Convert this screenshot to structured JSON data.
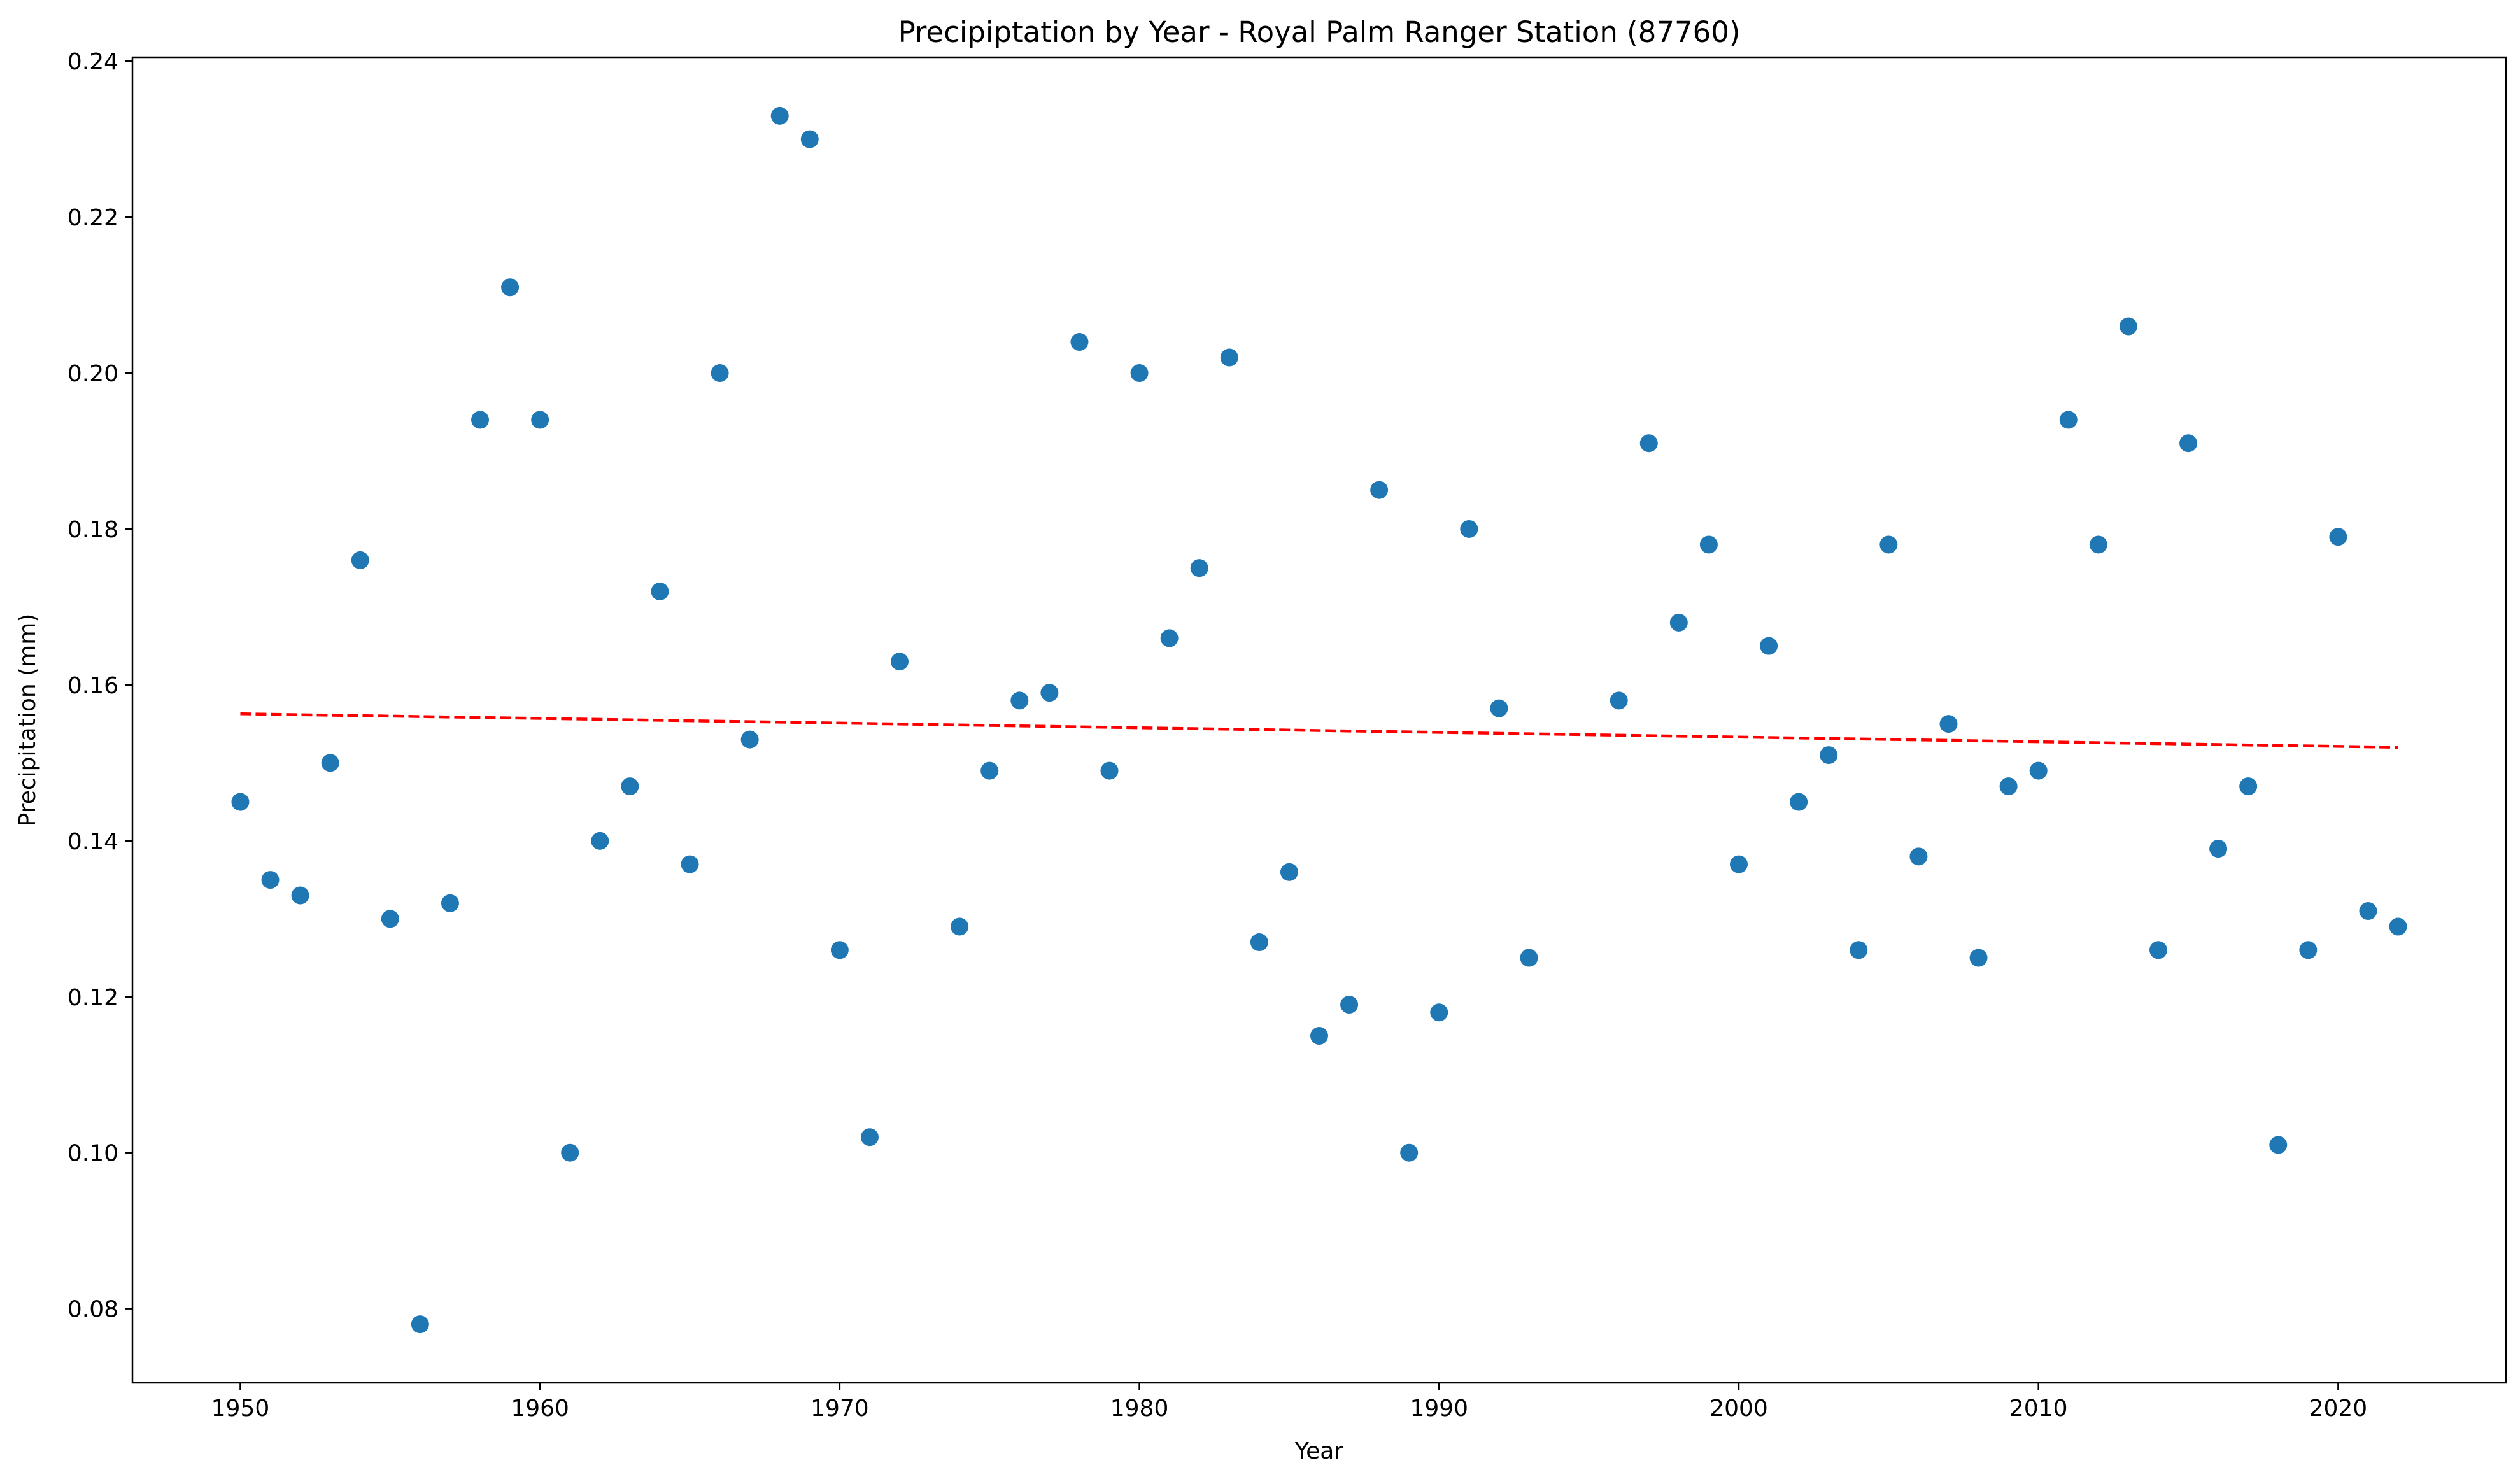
{
  "chart_data": {
    "type": "scatter",
    "title": "Precipiptation by Year - Royal Palm Ranger Station (87760)",
    "xlabel": "Year",
    "ylabel": "Precipitation (mm)",
    "xlim": [
      1946.4,
      2025.6
    ],
    "ylim": [
      0.0705,
      0.2405
    ],
    "xticks": [
      1950,
      1960,
      1970,
      1980,
      1990,
      2000,
      2010,
      2020
    ],
    "yticks": [
      0.08,
      0.1,
      0.12,
      0.14,
      0.16,
      0.18,
      0.2,
      0.22,
      0.24
    ],
    "ytick_labels": [
      "0.08",
      "0.10",
      "0.12",
      "0.14",
      "0.16",
      "0.18",
      "0.20",
      "0.22",
      "0.24"
    ],
    "grid": false,
    "series": [
      {
        "kind": "points",
        "color": "#1f77b4",
        "x": [
          1950,
          1951,
          1952,
          1953,
          1954,
          1955,
          1956,
          1957,
          1958,
          1959,
          1960,
          1961,
          1962,
          1963,
          1964,
          1965,
          1966,
          1967,
          1968,
          1969,
          1970,
          1971,
          1972,
          1974,
          1975,
          1976,
          1977,
          1978,
          1979,
          1980,
          1981,
          1982,
          1983,
          1984,
          1985,
          1986,
          1987,
          1988,
          1989,
          1990,
          1991,
          1992,
          1993,
          1996,
          1997,
          1998,
          1999,
          2000,
          2001,
          2002,
          2003,
          2004,
          2005,
          2006,
          2007,
          2008,
          2009,
          2010,
          2011,
          2012,
          2013,
          2014,
          2015,
          2016,
          2017,
          2018,
          2019,
          2020,
          2021,
          2022
        ],
        "y": [
          0.145,
          0.135,
          0.133,
          0.15,
          0.176,
          0.13,
          0.078,
          0.132,
          0.194,
          0.211,
          0.194,
          0.1,
          0.14,
          0.147,
          0.172,
          0.137,
          0.2,
          0.153,
          0.233,
          0.23,
          0.126,
          0.102,
          0.163,
          0.129,
          0.149,
          0.158,
          0.159,
          0.204,
          0.149,
          0.2,
          0.166,
          0.175,
          0.202,
          0.127,
          0.136,
          0.115,
          0.119,
          0.185,
          0.1,
          0.118,
          0.18,
          0.157,
          0.125,
          0.158,
          0.191,
          0.168,
          0.178,
          0.137,
          0.165,
          0.145,
          0.151,
          0.126,
          0.178,
          0.138,
          0.155,
          0.125,
          0.147,
          0.149,
          0.194,
          0.178,
          0.206,
          0.126,
          0.191,
          0.139,
          0.147,
          0.101,
          0.126,
          0.179,
          0.131,
          0.129
        ]
      },
      {
        "kind": "trend-line",
        "color": "#ff0000",
        "style": "dashed",
        "x": [
          1950,
          2022
        ],
        "y": [
          0.1563,
          0.152
        ]
      }
    ]
  }
}
